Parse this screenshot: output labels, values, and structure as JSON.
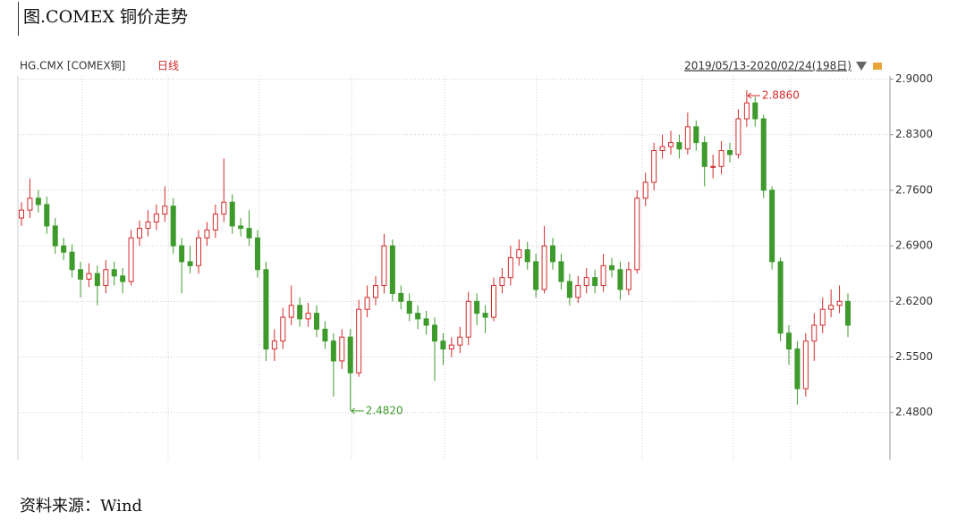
{
  "caption": "图.COMEX 铜价走势",
  "source": "资料来源：Wind",
  "chart_data": {
    "type": "candlestick",
    "symbol": "HG.CMX [COMEX铜]",
    "period": "日线",
    "date_range": "2019/05/13-2020/02/24(198日)",
    "up_color": "#d42a2a",
    "down_color": "#3d9a2b",
    "ylim": [
      2.42,
      2.904
    ],
    "yticks": [
      {
        "value": 2.48,
        "label": "2.4800"
      },
      {
        "value": 2.55,
        "label": "2.5500"
      },
      {
        "value": 2.62,
        "label": "2.6200"
      },
      {
        "value": 2.69,
        "label": "2.6900"
      },
      {
        "value": 2.76,
        "label": "2.7600"
      },
      {
        "value": 2.83,
        "label": "2.8300"
      },
      {
        "value": 2.9,
        "label": "2.9000"
      }
    ],
    "grid": true,
    "annotations": [
      {
        "label": "2.8860",
        "value": 2.886,
        "color": "#d42a2a"
      },
      {
        "label": "2.4820",
        "value": 2.482,
        "color": "#3d9a2b"
      }
    ],
    "open": [
      2.725,
      2.735,
      2.75,
      2.742,
      2.715,
      2.69,
      2.682,
      2.66,
      2.648,
      2.655,
      2.64,
      2.66,
      2.652,
      2.645,
      2.7,
      2.712,
      2.72,
      2.73,
      2.74,
      2.69,
      2.67,
      2.665,
      2.7,
      2.71,
      2.73,
      2.745,
      2.715,
      2.712,
      2.7,
      2.66,
      2.56,
      2.57,
      2.6,
      2.615,
      2.598,
      2.605,
      2.585,
      2.57,
      2.545,
      2.575,
      2.53,
      2.61,
      2.625,
      2.64,
      2.69,
      2.63,
      2.62,
      2.605,
      2.598,
      2.59,
      2.57,
      2.56,
      2.565,
      2.575,
      2.62,
      2.605,
      2.6,
      2.64,
      2.65,
      2.675,
      2.685,
      2.67,
      2.635,
      2.69,
      2.67,
      2.645,
      2.625,
      2.64,
      2.65,
      2.64,
      2.665,
      2.66,
      2.635,
      2.66,
      2.75,
      2.77,
      2.81,
      2.815,
      2.82,
      2.812,
      2.84,
      2.82,
      2.79,
      2.79,
      2.81,
      2.805,
      2.85,
      2.87,
      2.85,
      2.76,
      2.67,
      2.58,
      2.56,
      2.51,
      2.57,
      2.59,
      2.61,
      2.615,
      2.62
    ],
    "high": [
      2.745,
      2.775,
      2.76,
      2.752,
      2.725,
      2.7,
      2.692,
      2.67,
      2.668,
      2.665,
      2.672,
      2.67,
      2.662,
      2.71,
      2.722,
      2.735,
      2.742,
      2.765,
      2.75,
      2.7,
      2.69,
      2.71,
      2.72,
      2.742,
      2.8,
      2.755,
      2.725,
      2.735,
      2.71,
      2.67,
      2.585,
      2.612,
      2.64,
      2.625,
      2.618,
      2.615,
      2.595,
      2.58,
      2.585,
      2.585,
      2.622,
      2.64,
      2.652,
      2.705,
      2.698,
      2.64,
      2.63,
      2.615,
      2.608,
      2.6,
      2.58,
      2.575,
      2.588,
      2.632,
      2.63,
      2.615,
      2.65,
      2.662,
      2.69,
      2.698,
      2.695,
      2.68,
      2.715,
      2.7,
      2.68,
      2.655,
      2.652,
      2.662,
      2.66,
      2.68,
      2.675,
      2.67,
      2.67,
      2.76,
      2.782,
      2.82,
      2.83,
      2.835,
      2.83,
      2.858,
      2.848,
      2.828,
      2.805,
      2.822,
      2.82,
      2.862,
      2.886,
      2.878,
      2.855,
      2.765,
      2.675,
      2.59,
      2.57,
      2.58,
      2.605,
      2.625,
      2.635,
      2.64,
      2.63
    ],
    "low": [
      2.715,
      2.725,
      2.732,
      2.705,
      2.68,
      2.672,
      2.65,
      2.625,
      2.638,
      2.615,
      2.63,
      2.64,
      2.63,
      2.64,
      2.69,
      2.702,
      2.71,
      2.72,
      2.68,
      2.63,
      2.655,
      2.655,
      2.69,
      2.7,
      2.72,
      2.705,
      2.702,
      2.69,
      2.65,
      2.545,
      2.545,
      2.56,
      2.59,
      2.588,
      2.588,
      2.575,
      2.56,
      2.5,
      2.535,
      2.482,
      2.525,
      2.6,
      2.615,
      2.63,
      2.62,
      2.61,
      2.595,
      2.585,
      2.578,
      2.52,
      2.54,
      2.55,
      2.555,
      2.565,
      2.59,
      2.58,
      2.595,
      2.63,
      2.64,
      2.665,
      2.66,
      2.625,
      2.63,
      2.66,
      2.635,
      2.615,
      2.618,
      2.63,
      2.63,
      2.632,
      2.65,
      2.622,
      2.628,
      2.655,
      2.74,
      2.76,
      2.8,
      2.805,
      2.8,
      2.805,
      2.81,
      2.765,
      2.775,
      2.78,
      2.795,
      2.8,
      2.84,
      2.84,
      2.75,
      2.66,
      2.57,
      2.54,
      2.49,
      2.5,
      2.545,
      2.58,
      2.6,
      2.605,
      2.575
    ],
    "close": [
      2.735,
      2.75,
      2.742,
      2.715,
      2.69,
      2.682,
      2.66,
      2.648,
      2.655,
      2.64,
      2.66,
      2.652,
      2.645,
      2.7,
      2.712,
      2.72,
      2.73,
      2.74,
      2.69,
      2.67,
      2.665,
      2.7,
      2.71,
      2.73,
      2.745,
      2.715,
      2.712,
      2.7,
      2.66,
      2.56,
      2.57,
      2.6,
      2.615,
      2.598,
      2.605,
      2.585,
      2.57,
      2.545,
      2.575,
      2.53,
      2.61,
      2.625,
      2.64,
      2.69,
      2.63,
      2.62,
      2.605,
      2.598,
      2.59,
      2.57,
      2.56,
      2.565,
      2.575,
      2.62,
      2.605,
      2.6,
      2.64,
      2.65,
      2.675,
      2.685,
      2.67,
      2.635,
      2.69,
      2.67,
      2.645,
      2.625,
      2.64,
      2.65,
      2.64,
      2.665,
      2.66,
      2.635,
      2.66,
      2.75,
      2.77,
      2.81,
      2.815,
      2.82,
      2.812,
      2.84,
      2.82,
      2.79,
      2.79,
      2.81,
      2.805,
      2.85,
      2.87,
      2.85,
      2.76,
      2.67,
      2.58,
      2.56,
      2.51,
      2.57,
      2.59,
      2.61,
      2.615,
      2.62,
      2.59
    ]
  }
}
